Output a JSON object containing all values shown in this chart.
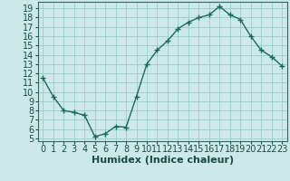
{
  "x": [
    0,
    1,
    2,
    3,
    4,
    5,
    6,
    7,
    8,
    9,
    10,
    11,
    12,
    13,
    14,
    15,
    16,
    17,
    18,
    19,
    20,
    21,
    22,
    23
  ],
  "y": [
    11.5,
    9.5,
    8.0,
    7.8,
    7.5,
    5.2,
    5.5,
    6.3,
    6.2,
    9.5,
    13.0,
    14.5,
    15.5,
    16.8,
    17.5,
    18.0,
    18.3,
    19.2,
    18.3,
    17.8,
    16.0,
    14.5,
    13.8,
    12.8
  ],
  "line_color": "#1a6b5a",
  "marker": "+",
  "marker_size": 4,
  "bg_color": "#cce8e8",
  "grid_color": "#99cccc",
  "xlabel": "Humidex (Indice chaleur)",
  "xlim": [
    -0.5,
    23.5
  ],
  "ylim": [
    4.7,
    19.7
  ],
  "yticks": [
    5,
    6,
    7,
    8,
    9,
    10,
    11,
    12,
    13,
    14,
    15,
    16,
    17,
    18,
    19
  ],
  "xticks": [
    0,
    1,
    2,
    3,
    4,
    5,
    6,
    7,
    8,
    9,
    10,
    11,
    12,
    13,
    14,
    15,
    16,
    17,
    18,
    19,
    20,
    21,
    22,
    23
  ],
  "xlabel_fontsize": 8,
  "tick_fontsize": 7
}
